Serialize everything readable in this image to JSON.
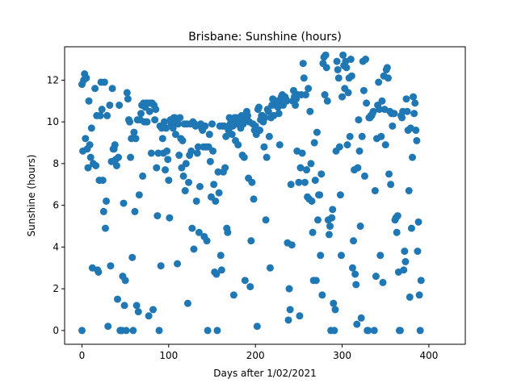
{
  "chart_data": {
    "type": "scatter",
    "title": "Brisbane: Sunshine (hours)",
    "xlabel": "Days after 1/02/2021",
    "ylabel": "Sunshine (hours)",
    "xlim": [
      -20,
      442
    ],
    "ylim": [
      -0.66,
      13.6
    ],
    "xticks": [
      0,
      100,
      200,
      300,
      400
    ],
    "yticks": [
      0,
      2,
      4,
      6,
      8,
      10,
      12
    ],
    "grid": false,
    "marker_color": "#1f77b4",
    "points": [
      [
        0,
        0
      ],
      [
        0,
        11.8
      ],
      [
        1,
        8.6
      ],
      [
        2,
        12.0
      ],
      [
        3,
        12.3
      ],
      [
        4,
        9.2
      ],
      [
        5,
        12.1
      ],
      [
        6,
        8.7
      ],
      [
        7,
        7.8
      ],
      [
        8,
        11.0
      ],
      [
        9,
        8.9
      ],
      [
        10,
        8.3
      ],
      [
        11,
        9.7
      ],
      [
        12,
        3.0
      ],
      [
        13,
        8.0
      ],
      [
        15,
        11.6
      ],
      [
        16,
        7.9
      ],
      [
        17,
        10.3
      ],
      [
        18,
        2.9
      ],
      [
        19,
        2.8
      ],
      [
        20,
        7.2
      ],
      [
        21,
        10.3
      ],
      [
        22,
        11.9
      ],
      [
        23,
        10.6
      ],
      [
        24,
        7.2
      ],
      [
        25,
        5.7
      ],
      [
        26,
        11.9
      ],
      [
        27,
        4.9
      ],
      [
        28,
        6.2
      ],
      [
        29,
        10.3
      ],
      [
        30,
        0.2
      ],
      [
        32,
        10.8
      ],
      [
        33,
        3.1
      ],
      [
        34,
        8.1
      ],
      [
        35,
        11.6
      ],
      [
        36,
        8.7
      ],
      [
        37,
        8.7
      ],
      [
        38,
        8.9
      ],
      [
        39,
        8.2
      ],
      [
        40,
        7.9
      ],
      [
        41,
        1.5
      ],
      [
        42,
        8.3
      ],
      [
        43,
        10.8
      ],
      [
        44,
        0
      ],
      [
        45,
        0
      ],
      [
        46,
        0
      ],
      [
        47,
        2.6
      ],
      [
        48,
        6.1
      ],
      [
        49,
        1.2
      ],
      [
        50,
        2.4
      ],
      [
        51,
        0
      ],
      [
        52,
        11.4
      ],
      [
        53,
        11.1
      ],
      [
        54,
        10.1
      ],
      [
        55,
        10.0
      ],
      [
        56,
        8.3
      ],
      [
        57,
        9.2
      ],
      [
        58,
        3.5
      ],
      [
        59,
        0
      ],
      [
        60,
        9.5
      ],
      [
        61,
        5.7
      ],
      [
        62,
        9.2
      ],
      [
        63,
        1.2
      ],
      [
        64,
        10.1
      ],
      [
        65,
        0.9
      ],
      [
        66,
        6.5
      ],
      [
        67,
        10.1
      ],
      [
        68,
        10.4
      ],
      [
        69,
        10.8
      ],
      [
        70,
        7.4
      ],
      [
        71,
        10.9
      ],
      [
        72,
        10.0
      ],
      [
        73,
        10.7
      ],
      [
        74,
        10.9
      ],
      [
        75,
        10.0
      ],
      [
        76,
        10.9
      ],
      [
        77,
        0.7
      ],
      [
        78,
        10.5
      ],
      [
        79,
        10.9
      ],
      [
        80,
        8.5
      ],
      [
        81,
        10.9
      ],
      [
        82,
        1.0
      ],
      [
        83,
        10.8
      ],
      [
        84,
        10.1
      ],
      [
        85,
        10.6
      ],
      [
        86,
        7.8
      ],
      [
        87,
        5.5
      ],
      [
        88,
        8.5
      ],
      [
        89,
        0
      ],
      [
        90,
        9.8
      ],
      [
        91,
        3.1
      ],
      [
        92,
        9.7
      ],
      [
        93,
        9.2
      ],
      [
        94,
        8.5
      ],
      [
        95,
        10.0
      ],
      [
        96,
        7.7
      ],
      [
        97,
        9.7
      ],
      [
        98,
        8.6
      ],
      [
        99,
        8.2
      ],
      [
        100,
        7.2
      ],
      [
        101,
        5.4
      ],
      [
        102,
        10.1
      ],
      [
        103,
        9.9
      ],
      [
        104,
        10.1
      ],
      [
        105,
        9.7
      ],
      [
        106,
        10.2
      ],
      [
        107,
        10.2
      ],
      [
        108,
        9.4
      ],
      [
        109,
        10.0
      ],
      [
        110,
        3.2
      ],
      [
        111,
        9.9
      ],
      [
        112,
        8.4
      ],
      [
        113,
        10.2
      ],
      [
        114,
        9.2
      ],
      [
        115,
        7.8
      ],
      [
        116,
        9.1
      ],
      [
        117,
        7.4
      ],
      [
        118,
        9.9
      ],
      [
        119,
        6.7
      ],
      [
        120,
        8.0
      ],
      [
        121,
        9.9
      ],
      [
        122,
        1.3
      ],
      [
        123,
        7.1
      ],
      [
        124,
        8.4
      ],
      [
        125,
        9.9
      ],
      [
        126,
        8.6
      ],
      [
        127,
        4.9
      ],
      [
        128,
        10.0
      ],
      [
        129,
        3.9
      ],
      [
        130,
        9.9
      ],
      [
        131,
        9.8
      ],
      [
        132,
        6.2
      ],
      [
        133,
        8.5
      ],
      [
        134,
        8.8
      ],
      [
        135,
        4.7
      ],
      [
        136,
        6.9
      ],
      [
        137,
        9.9
      ],
      [
        138,
        9.7
      ],
      [
        139,
        9.6
      ],
      [
        140,
        8.8
      ],
      [
        141,
        4.5
      ],
      [
        142,
        9.8
      ],
      [
        143,
        8.8
      ],
      [
        144,
        4.3
      ],
      [
        145,
        0
      ],
      [
        146,
        8.8
      ],
      [
        147,
        9.4
      ],
      [
        148,
        8.1
      ],
      [
        149,
        6.4
      ],
      [
        150,
        9.9
      ],
      [
        151,
        8.6
      ],
      [
        152,
        7.0
      ],
      [
        153,
        2.8
      ],
      [
        154,
        6.2
      ],
      [
        155,
        2.7
      ],
      [
        156,
        0
      ],
      [
        157,
        7.6
      ],
      [
        158,
        6.6
      ],
      [
        159,
        9.8
      ],
      [
        160,
        3.6
      ],
      [
        161,
        2.9
      ],
      [
        162,
        9.8
      ],
      [
        163,
        7.6
      ],
      [
        164,
        9.8
      ],
      [
        165,
        7.8
      ],
      [
        166,
        9.3
      ],
      [
        167,
        4.9
      ],
      [
        168,
        4.7
      ],
      [
        169,
        9.6
      ],
      [
        170,
        10.2
      ],
      [
        171,
        9.9
      ],
      [
        172,
        10.0
      ],
      [
        173,
        9.4
      ],
      [
        174,
        9.8
      ],
      [
        175,
        1.7
      ],
      [
        176,
        10.2
      ],
      [
        177,
        9.1
      ],
      [
        178,
        10.2
      ],
      [
        179,
        9.9
      ],
      [
        180,
        8.9
      ],
      [
        181,
        10.1
      ],
      [
        182,
        10.0
      ],
      [
        183,
        9.7
      ],
      [
        184,
        10.3
      ],
      [
        185,
        8.4
      ],
      [
        186,
        9.9
      ],
      [
        187,
        8.3
      ],
      [
        188,
        2.4
      ],
      [
        189,
        10.1
      ],
      [
        190,
        10.5
      ],
      [
        191,
        10.3
      ],
      [
        192,
        7.3
      ],
      [
        193,
        10.0
      ],
      [
        194,
        2.1
      ],
      [
        195,
        4.3
      ],
      [
        196,
        7.1
      ],
      [
        197,
        9.9
      ],
      [
        198,
        6.3
      ],
      [
        199,
        9.6
      ],
      [
        200,
        9.8
      ],
      [
        201,
        9.4
      ],
      [
        202,
        0.2
      ],
      [
        203,
        10.6
      ],
      [
        204,
        10.7
      ],
      [
        205,
        9.6
      ],
      [
        206,
        10.1
      ],
      [
        207,
        10.3
      ],
      [
        208,
        10.3
      ],
      [
        209,
        10.0
      ],
      [
        210,
        8.8
      ],
      [
        211,
        10.2
      ],
      [
        212,
        5.3
      ],
      [
        213,
        8.3
      ],
      [
        214,
        10.6
      ],
      [
        215,
        10.5
      ],
      [
        216,
        9.3
      ],
      [
        217,
        3.0
      ],
      [
        218,
        10.2
      ],
      [
        219,
        10.8
      ],
      [
        220,
        11.1
      ],
      [
        221,
        10.3
      ],
      [
        222,
        11.0
      ],
      [
        223,
        10.8
      ],
      [
        224,
        10.9
      ],
      [
        225,
        11.0
      ],
      [
        226,
        10.7
      ],
      [
        227,
        10.4
      ],
      [
        228,
        8.9
      ],
      [
        229,
        11.0
      ],
      [
        230,
        11.2
      ],
      [
        231,
        11.3
      ],
      [
        232,
        10.8
      ],
      [
        233,
        11.0
      ],
      [
        234,
        11.2
      ],
      [
        235,
        11.1
      ],
      [
        236,
        11.0
      ],
      [
        237,
        4.2
      ],
      [
        238,
        0.5
      ],
      [
        239,
        2.0
      ],
      [
        240,
        1.0
      ],
      [
        241,
        7.0
      ],
      [
        242,
        4.1
      ],
      [
        243,
        11.0
      ],
      [
        244,
        11.5
      ],
      [
        245,
        11.2
      ],
      [
        246,
        10.8
      ],
      [
        247,
        11.1
      ],
      [
        248,
        8.6
      ],
      [
        249,
        11.3
      ],
      [
        250,
        7.1
      ],
      [
        251,
        0.7
      ],
      [
        252,
        7.8
      ],
      [
        253,
        11.3
      ],
      [
        254,
        8.5
      ],
      [
        255,
        12.8
      ],
      [
        256,
        12.1
      ],
      [
        257,
        7.1
      ],
      [
        258,
        11.3
      ],
      [
        259,
        7.7
      ],
      [
        260,
        6.4
      ],
      [
        261,
        11.6
      ],
      [
        262,
        6.3
      ],
      [
        263,
        10.5
      ],
      [
        264,
        8.0
      ],
      [
        265,
        6.2
      ],
      [
        266,
        4.7
      ],
      [
        267,
        2.4
      ],
      [
        268,
        9.0
      ],
      [
        269,
        7.2
      ],
      [
        270,
        2.4
      ],
      [
        271,
        9.5
      ],
      [
        272,
        5.3
      ],
      [
        273,
        6.5
      ],
      [
        274,
        6.5
      ],
      [
        275,
        3.6
      ],
      [
        276,
        7.5
      ],
      [
        277,
        1.7
      ],
      [
        278,
        12.8
      ],
      [
        279,
        13.1
      ],
      [
        280,
        11.3
      ],
      [
        281,
        13.2
      ],
      [
        282,
        12.6
      ],
      [
        283,
        11.0
      ],
      [
        284,
        5.3
      ],
      [
        285,
        4.6
      ],
      [
        286,
        5.0
      ],
      [
        287,
        0
      ],
      [
        288,
        5.4
      ],
      [
        289,
        5.8
      ],
      [
        290,
        1.3
      ],
      [
        291,
        0
      ],
      [
        292,
        1.0
      ],
      [
        293,
        8.6
      ],
      [
        294,
        12.9
      ],
      [
        295,
        12.5
      ],
      [
        296,
        12.1
      ],
      [
        297,
        8.8
      ],
      [
        298,
        6.5
      ],
      [
        299,
        3.6
      ],
      [
        300,
        11.2
      ],
      [
        301,
        13.2
      ],
      [
        302,
        12.7
      ],
      [
        303,
        11.6
      ],
      [
        304,
        12.9
      ],
      [
        305,
        12.6
      ],
      [
        306,
        8.9
      ],
      [
        307,
        11.4
      ],
      [
        308,
        12.1
      ],
      [
        309,
        9.3
      ],
      [
        310,
        13.0
      ],
      [
        311,
        12.2
      ],
      [
        312,
        3.0
      ],
      [
        313,
        4.3
      ],
      [
        314,
        7.7
      ],
      [
        315,
        2.7
      ],
      [
        316,
        2.2
      ],
      [
        317,
        0.3
      ],
      [
        318,
        7.8
      ],
      [
        319,
        10.1
      ],
      [
        320,
        8.6
      ],
      [
        321,
        5.0
      ],
      [
        322,
        0.6
      ],
      [
        323,
        9.3
      ],
      [
        324,
        12.9
      ],
      [
        325,
        11.5
      ],
      [
        326,
        7.4
      ],
      [
        327,
        13.0
      ],
      [
        328,
        10.9
      ],
      [
        329,
        0
      ],
      [
        330,
        0
      ],
      [
        331,
        10.2
      ],
      [
        332,
        10.2
      ],
      [
        333,
        10.3
      ],
      [
        334,
        10.3
      ],
      [
        335,
        10.4
      ],
      [
        336,
        10.5
      ],
      [
        337,
        0
      ],
      [
        338,
        6.7
      ],
      [
        339,
        2.6
      ],
      [
        340,
        9.2
      ],
      [
        341,
        10.8
      ],
      [
        342,
        11.9
      ],
      [
        343,
        10.6
      ],
      [
        344,
        3.6
      ],
      [
        345,
        9.3
      ],
      [
        346,
        11.0
      ],
      [
        347,
        2.3
      ],
      [
        348,
        12.2
      ],
      [
        349,
        10.6
      ],
      [
        350,
        8.9
      ],
      [
        351,
        12.5
      ],
      [
        352,
        12.6
      ],
      [
        353,
        12.1
      ],
      [
        354,
        7.5
      ],
      [
        355,
        10.5
      ],
      [
        356,
        7.0
      ],
      [
        357,
        10.4
      ],
      [
        358,
        9.8
      ],
      [
        359,
        10.4
      ],
      [
        360,
        10.4
      ],
      [
        361,
        5.3
      ],
      [
        362,
        5.4
      ],
      [
        363,
        4.7
      ],
      [
        364,
        5.5
      ],
      [
        365,
        2.8
      ],
      [
        366,
        0
      ],
      [
        367,
        0
      ],
      [
        368,
        10.3
      ],
      [
        369,
        10.2
      ],
      [
        370,
        10.5
      ],
      [
        371,
        2.9
      ],
      [
        372,
        3.8
      ],
      [
        373,
        3.3
      ],
      [
        374,
        11.1
      ],
      [
        375,
        10.5
      ],
      [
        376,
        9.6
      ],
      [
        377,
        6.7
      ],
      [
        378,
        1.6
      ],
      [
        379,
        9.7
      ],
      [
        380,
        4.9
      ],
      [
        381,
        8.3
      ],
      [
        382,
        11.2
      ],
      [
        383,
        10.4
      ],
      [
        384,
        10.9
      ],
      [
        385,
        9.6
      ],
      [
        386,
        9.1
      ],
      [
        387,
        3.8
      ],
      [
        388,
        5.2
      ],
      [
        389,
        1.7
      ],
      [
        390,
        0
      ],
      [
        391,
        2.4
      ]
    ]
  }
}
